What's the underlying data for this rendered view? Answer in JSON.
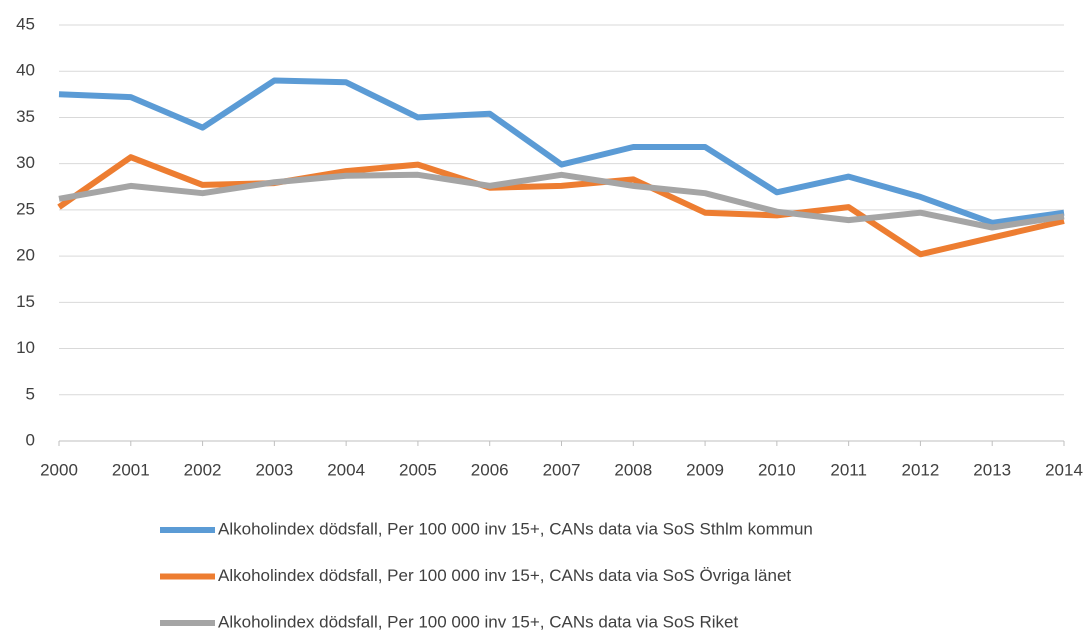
{
  "chart_data": {
    "type": "line",
    "x": [
      2000,
      2001,
      2002,
      2003,
      2004,
      2005,
      2006,
      2007,
      2008,
      2009,
      2010,
      2011,
      2012,
      2013,
      2014
    ],
    "xlim": [
      2000,
      2014
    ],
    "xticks": [
      2000,
      2001,
      2002,
      2003,
      2004,
      2005,
      2006,
      2007,
      2008,
      2009,
      2010,
      2011,
      2012,
      2013,
      2014
    ],
    "ylim": [
      0,
      45
    ],
    "yticks": [
      0,
      5,
      10,
      15,
      20,
      25,
      30,
      35,
      40,
      45
    ],
    "grid": true,
    "legend": "bottom",
    "series": [
      {
        "name": "Alkoholindex dödsfall, Per 100 000 inv 15+, CANs data via SoS Sthlm kommun",
        "color": "#5b9bd5",
        "values": [
          37.5,
          37.2,
          33.9,
          39.0,
          38.8,
          35.0,
          35.4,
          29.9,
          31.8,
          31.8,
          26.9,
          28.6,
          26.4,
          23.6,
          24.7
        ]
      },
      {
        "name": "Alkoholindex dödsfall, Per 100 000 inv 15+, CANs data via SoS Övriga länet",
        "color": "#ed7d31",
        "values": [
          25.3,
          30.7,
          27.7,
          27.9,
          29.2,
          29.9,
          27.4,
          27.6,
          28.3,
          24.7,
          24.4,
          25.3,
          20.2,
          22.0,
          23.8
        ]
      },
      {
        "name": "Alkoholindex dödsfall, Per 100 000 inv 15+, CANs data via SoS Riket",
        "color": "#a5a5a5",
        "values": [
          26.2,
          27.6,
          26.8,
          28.0,
          28.7,
          28.8,
          27.6,
          28.8,
          27.6,
          26.8,
          24.8,
          23.9,
          24.7,
          23.1,
          24.3
        ]
      }
    ]
  }
}
